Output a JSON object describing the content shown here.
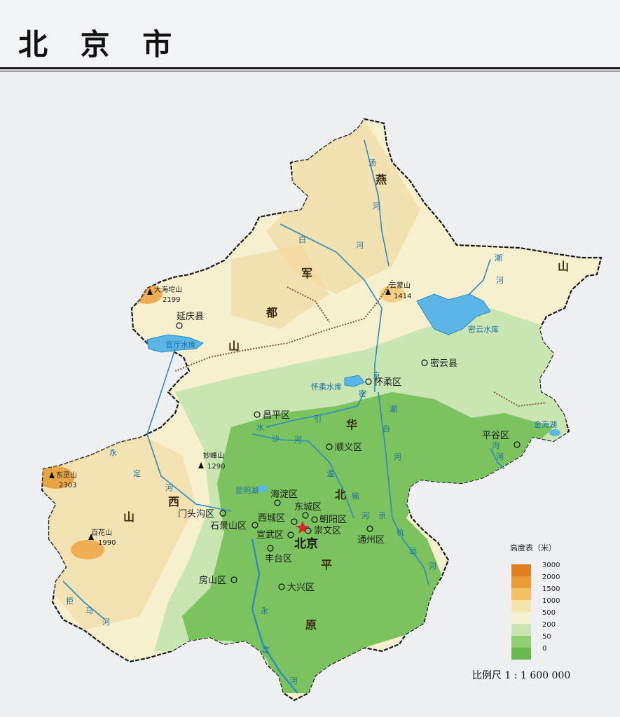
{
  "title": "北 京 市",
  "colors": {
    "mountain_high": "#e39a2e",
    "hills": "#f3deaa",
    "low_hills": "#f7f0cf",
    "plain": "#7ac35e",
    "water": "#5bb6e8",
    "river": "#2d8bc0",
    "capital_star": "#d8242a"
  },
  "regions": {
    "yanshan": "燕",
    "shan_e": "山",
    "jun": "军",
    "du": "都",
    "shan_jd": "山",
    "hua": "华",
    "bei": "北",
    "ping": "平",
    "yuan": "原",
    "xi": "西",
    "shan_xs": "山"
  },
  "cities": {
    "yanqing": "延庆县",
    "miyun": "密云县",
    "huairou": "怀柔区",
    "changping": "昌平区",
    "shunyi": "顺义区",
    "pinggu": "平谷区",
    "haidian": "海淀区",
    "dongcheng": "东城区",
    "xicheng": "西城区",
    "chaoyang": "朝阳区",
    "chongwen": "崇文区",
    "xuanwu": "宣武区",
    "shijingshan": "石景山区",
    "mentougou": "门头沟区",
    "fengtai": "丰台区",
    "tongzhou": "通州区",
    "fangshan": "房山区",
    "daxing": "大兴区",
    "beijing": "北京"
  },
  "peaks": {
    "dahaituo": {
      "name": "大海坨山",
      "height": "2199"
    },
    "yunmeng": {
      "name": "云蒙山",
      "height": "1414"
    },
    "miaofeng": {
      "name": "妙峰山",
      "height": "1290"
    },
    "dongling": {
      "name": "东灵山",
      "height": "2303"
    },
    "baihua": {
      "name": "百花山",
      "height": "1990"
    }
  },
  "water": {
    "miyun_res": "密云水库",
    "guanting": "官厅水库",
    "huairou_res": "怀柔水库",
    "kunming": "昆明湖",
    "jinhaihu": "金海湖",
    "tang1": "汤",
    "tang2": "河",
    "bai1": "白",
    "bai2": "河",
    "chao1": "潮",
    "chao2": "河",
    "yongding1": "永",
    "yongding2": "定",
    "yongding3": "河",
    "yd_low1": "永",
    "yd_low2": "定",
    "yd_low3": "河",
    "jingmi1": "京",
    "jingmi2": "密",
    "jingmi3": "引",
    "jingmi4": "水",
    "wenyu1": "温",
    "wenyu2": "榆",
    "wenyu3": "河",
    "chaobai1": "潮",
    "chaobai2": "白",
    "chaobai3": "河",
    "jinghang1": "京",
    "jinghang2": "杭",
    "jinghang3": "运",
    "jinghang4": "河",
    "juma1": "拒",
    "juma2": "马",
    "juma3": "河",
    "ai1": "泃",
    "ai2": "河",
    "sha1": "沙",
    "sha2": "河"
  },
  "legend": {
    "title": "高度表（米）",
    "levels": [
      {
        "label": "3000",
        "color": "#df7f1f"
      },
      {
        "label": "2000",
        "color": "#eb9c34"
      },
      {
        "label": "1500",
        "color": "#f3c067"
      },
      {
        "label": "1000",
        "color": "#f8e3ad"
      },
      {
        "label": "500",
        "color": "#f6f1d0"
      },
      {
        "label": "200",
        "color": "#c8e5b2"
      },
      {
        "label": "50",
        "color": "#8fcf72"
      },
      {
        "label": "0",
        "color": "#69b94c"
      }
    ]
  },
  "scale": "比例尺   1 : 1 600 000"
}
